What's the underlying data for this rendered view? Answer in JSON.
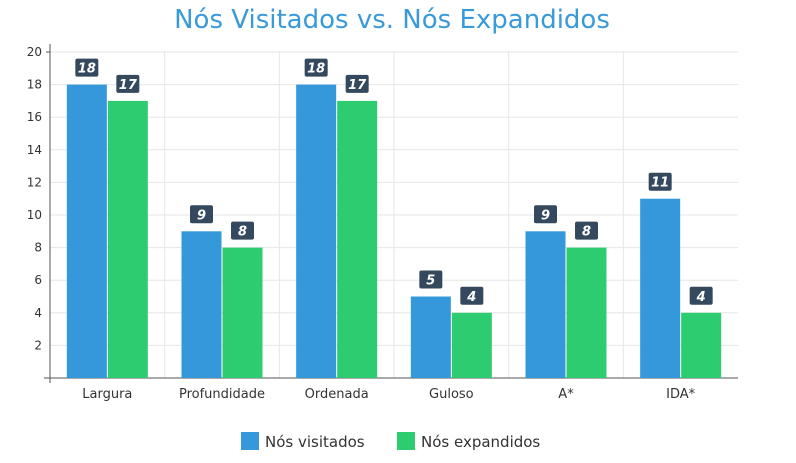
{
  "chart_data": {
    "type": "bar",
    "title": "Nós Visitados vs. Nós Expandidos",
    "xlabel": "",
    "ylabel": "",
    "categories": [
      "Largura",
      "Profundidade",
      "Ordenada",
      "Guloso",
      "A*",
      "IDA*"
    ],
    "series": [
      {
        "name": "Nós visitados",
        "color": "#3498db",
        "values": [
          18,
          9,
          18,
          5,
          9,
          11
        ]
      },
      {
        "name": "Nós expandidos",
        "color": "#2ecc71",
        "values": [
          17,
          8,
          17,
          4,
          8,
          4
        ]
      }
    ],
    "ylim": [
      0,
      20
    ],
    "yticks": [
      "2",
      "4",
      "6",
      "8",
      "10",
      "12",
      "14",
      "16",
      "18",
      "20"
    ],
    "grid": true,
    "legend_position": "bottom",
    "data_label_color": "#34495e"
  }
}
